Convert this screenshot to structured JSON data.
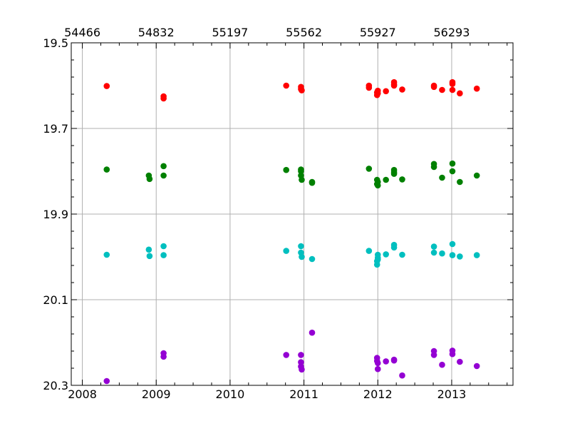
{
  "chart_data": {
    "type": "scatter",
    "title": "",
    "xlabel": "",
    "ylabel": "",
    "xlim": [
      2007.85,
      2013.83
    ],
    "ylim": [
      19.5,
      20.3
    ],
    "y_inverted": true,
    "grid": true,
    "x_ticks": [
      "2008",
      "2009",
      "2010",
      "2011",
      "2012",
      "2013"
    ],
    "y_ticks": [
      "19.5",
      "19.7",
      "19.9",
      "20.1",
      "20.3"
    ],
    "top_axis_ticks": [
      "54466",
      "54832",
      "55197",
      "55562",
      "55927",
      "56293"
    ],
    "series": [
      {
        "color": "#ff0000",
        "points": [
          [
            2008.33,
            19.601
          ],
          [
            2009.1,
            19.625
          ],
          [
            2009.1,
            19.63
          ],
          [
            2010.76,
            19.6
          ],
          [
            2010.96,
            19.603
          ],
          [
            2010.96,
            19.608
          ],
          [
            2010.97,
            19.611
          ],
          [
            2011.88,
            19.6
          ],
          [
            2011.88,
            19.605
          ],
          [
            2011.99,
            19.616
          ],
          [
            2011.99,
            19.622
          ],
          [
            2012.0,
            19.612
          ],
          [
            2012.0,
            19.618
          ],
          [
            2012.11,
            19.613
          ],
          [
            2012.22,
            19.592
          ],
          [
            2012.22,
            19.597
          ],
          [
            2012.22,
            19.6
          ],
          [
            2012.33,
            19.609
          ],
          [
            2012.76,
            19.6
          ],
          [
            2012.76,
            19.603
          ],
          [
            2012.87,
            19.61
          ],
          [
            2013.01,
            19.592
          ],
          [
            2013.01,
            19.596
          ],
          [
            2013.01,
            19.61
          ],
          [
            2013.11,
            19.618
          ],
          [
            2013.34,
            19.607
          ]
        ]
      },
      {
        "color": "#008000",
        "points": [
          [
            2008.33,
            19.796
          ],
          [
            2008.9,
            19.81
          ],
          [
            2008.91,
            19.818
          ],
          [
            2009.1,
            19.788
          ],
          [
            2009.1,
            19.81
          ],
          [
            2010.76,
            19.797
          ],
          [
            2010.96,
            19.796
          ],
          [
            2010.96,
            19.8
          ],
          [
            2010.96,
            19.81
          ],
          [
            2010.97,
            19.82
          ],
          [
            2011.11,
            19.825
          ],
          [
            2011.11,
            19.827
          ],
          [
            2011.88,
            19.794
          ],
          [
            2011.99,
            19.82
          ],
          [
            2011.99,
            19.83
          ],
          [
            2012.0,
            19.833
          ],
          [
            2012.0,
            19.825
          ],
          [
            2012.11,
            19.82
          ],
          [
            2012.22,
            19.797
          ],
          [
            2012.22,
            19.802
          ],
          [
            2012.22,
            19.806
          ],
          [
            2012.33,
            19.819
          ],
          [
            2012.76,
            19.783
          ],
          [
            2012.76,
            19.79
          ],
          [
            2012.87,
            19.815
          ],
          [
            2013.01,
            19.782
          ],
          [
            2013.01,
            19.8
          ],
          [
            2013.11,
            19.825
          ],
          [
            2013.34,
            19.81
          ]
        ]
      },
      {
        "color": "#00bfbf",
        "points": [
          [
            2008.33,
            19.995
          ],
          [
            2008.9,
            19.983
          ],
          [
            2008.91,
            19.998
          ],
          [
            2009.1,
            19.975
          ],
          [
            2009.1,
            19.996
          ],
          [
            2010.76,
            19.986
          ],
          [
            2010.96,
            19.975
          ],
          [
            2010.96,
            19.99
          ],
          [
            2010.97,
            20.0
          ],
          [
            2011.11,
            20.005
          ],
          [
            2011.88,
            19.986
          ],
          [
            2011.99,
            20.01
          ],
          [
            2011.99,
            20.018
          ],
          [
            2012.0,
            19.995
          ],
          [
            2012.0,
            20.002
          ],
          [
            2012.0,
            20.006
          ],
          [
            2012.11,
            19.994
          ],
          [
            2012.22,
            19.972
          ],
          [
            2012.22,
            19.978
          ],
          [
            2012.33,
            19.995
          ],
          [
            2012.76,
            19.976
          ],
          [
            2012.76,
            19.99
          ],
          [
            2012.87,
            19.992
          ],
          [
            2013.01,
            19.97
          ],
          [
            2013.01,
            19.996
          ],
          [
            2013.11,
            19.999
          ],
          [
            2013.34,
            19.996
          ]
        ]
      },
      {
        "color": "#9400d3",
        "points": [
          [
            2008.33,
            20.29
          ],
          [
            2009.1,
            20.225
          ],
          [
            2009.1,
            20.233
          ],
          [
            2010.76,
            20.229
          ],
          [
            2010.96,
            20.229
          ],
          [
            2010.96,
            20.246
          ],
          [
            2010.96,
            20.256
          ],
          [
            2010.97,
            20.263
          ],
          [
            2011.11,
            20.177
          ],
          [
            2011.99,
            20.236
          ],
          [
            2011.99,
            20.243
          ],
          [
            2012.0,
            20.248
          ],
          [
            2012.0,
            20.262
          ],
          [
            2012.11,
            20.244
          ],
          [
            2012.22,
            20.24
          ],
          [
            2012.22,
            20.242
          ],
          [
            2012.33,
            20.277
          ],
          [
            2012.76,
            20.22
          ],
          [
            2012.76,
            20.229
          ],
          [
            2012.87,
            20.252
          ],
          [
            2013.01,
            20.219
          ],
          [
            2013.01,
            20.227
          ],
          [
            2013.11,
            20.245
          ],
          [
            2013.34,
            20.255
          ]
        ]
      }
    ]
  }
}
